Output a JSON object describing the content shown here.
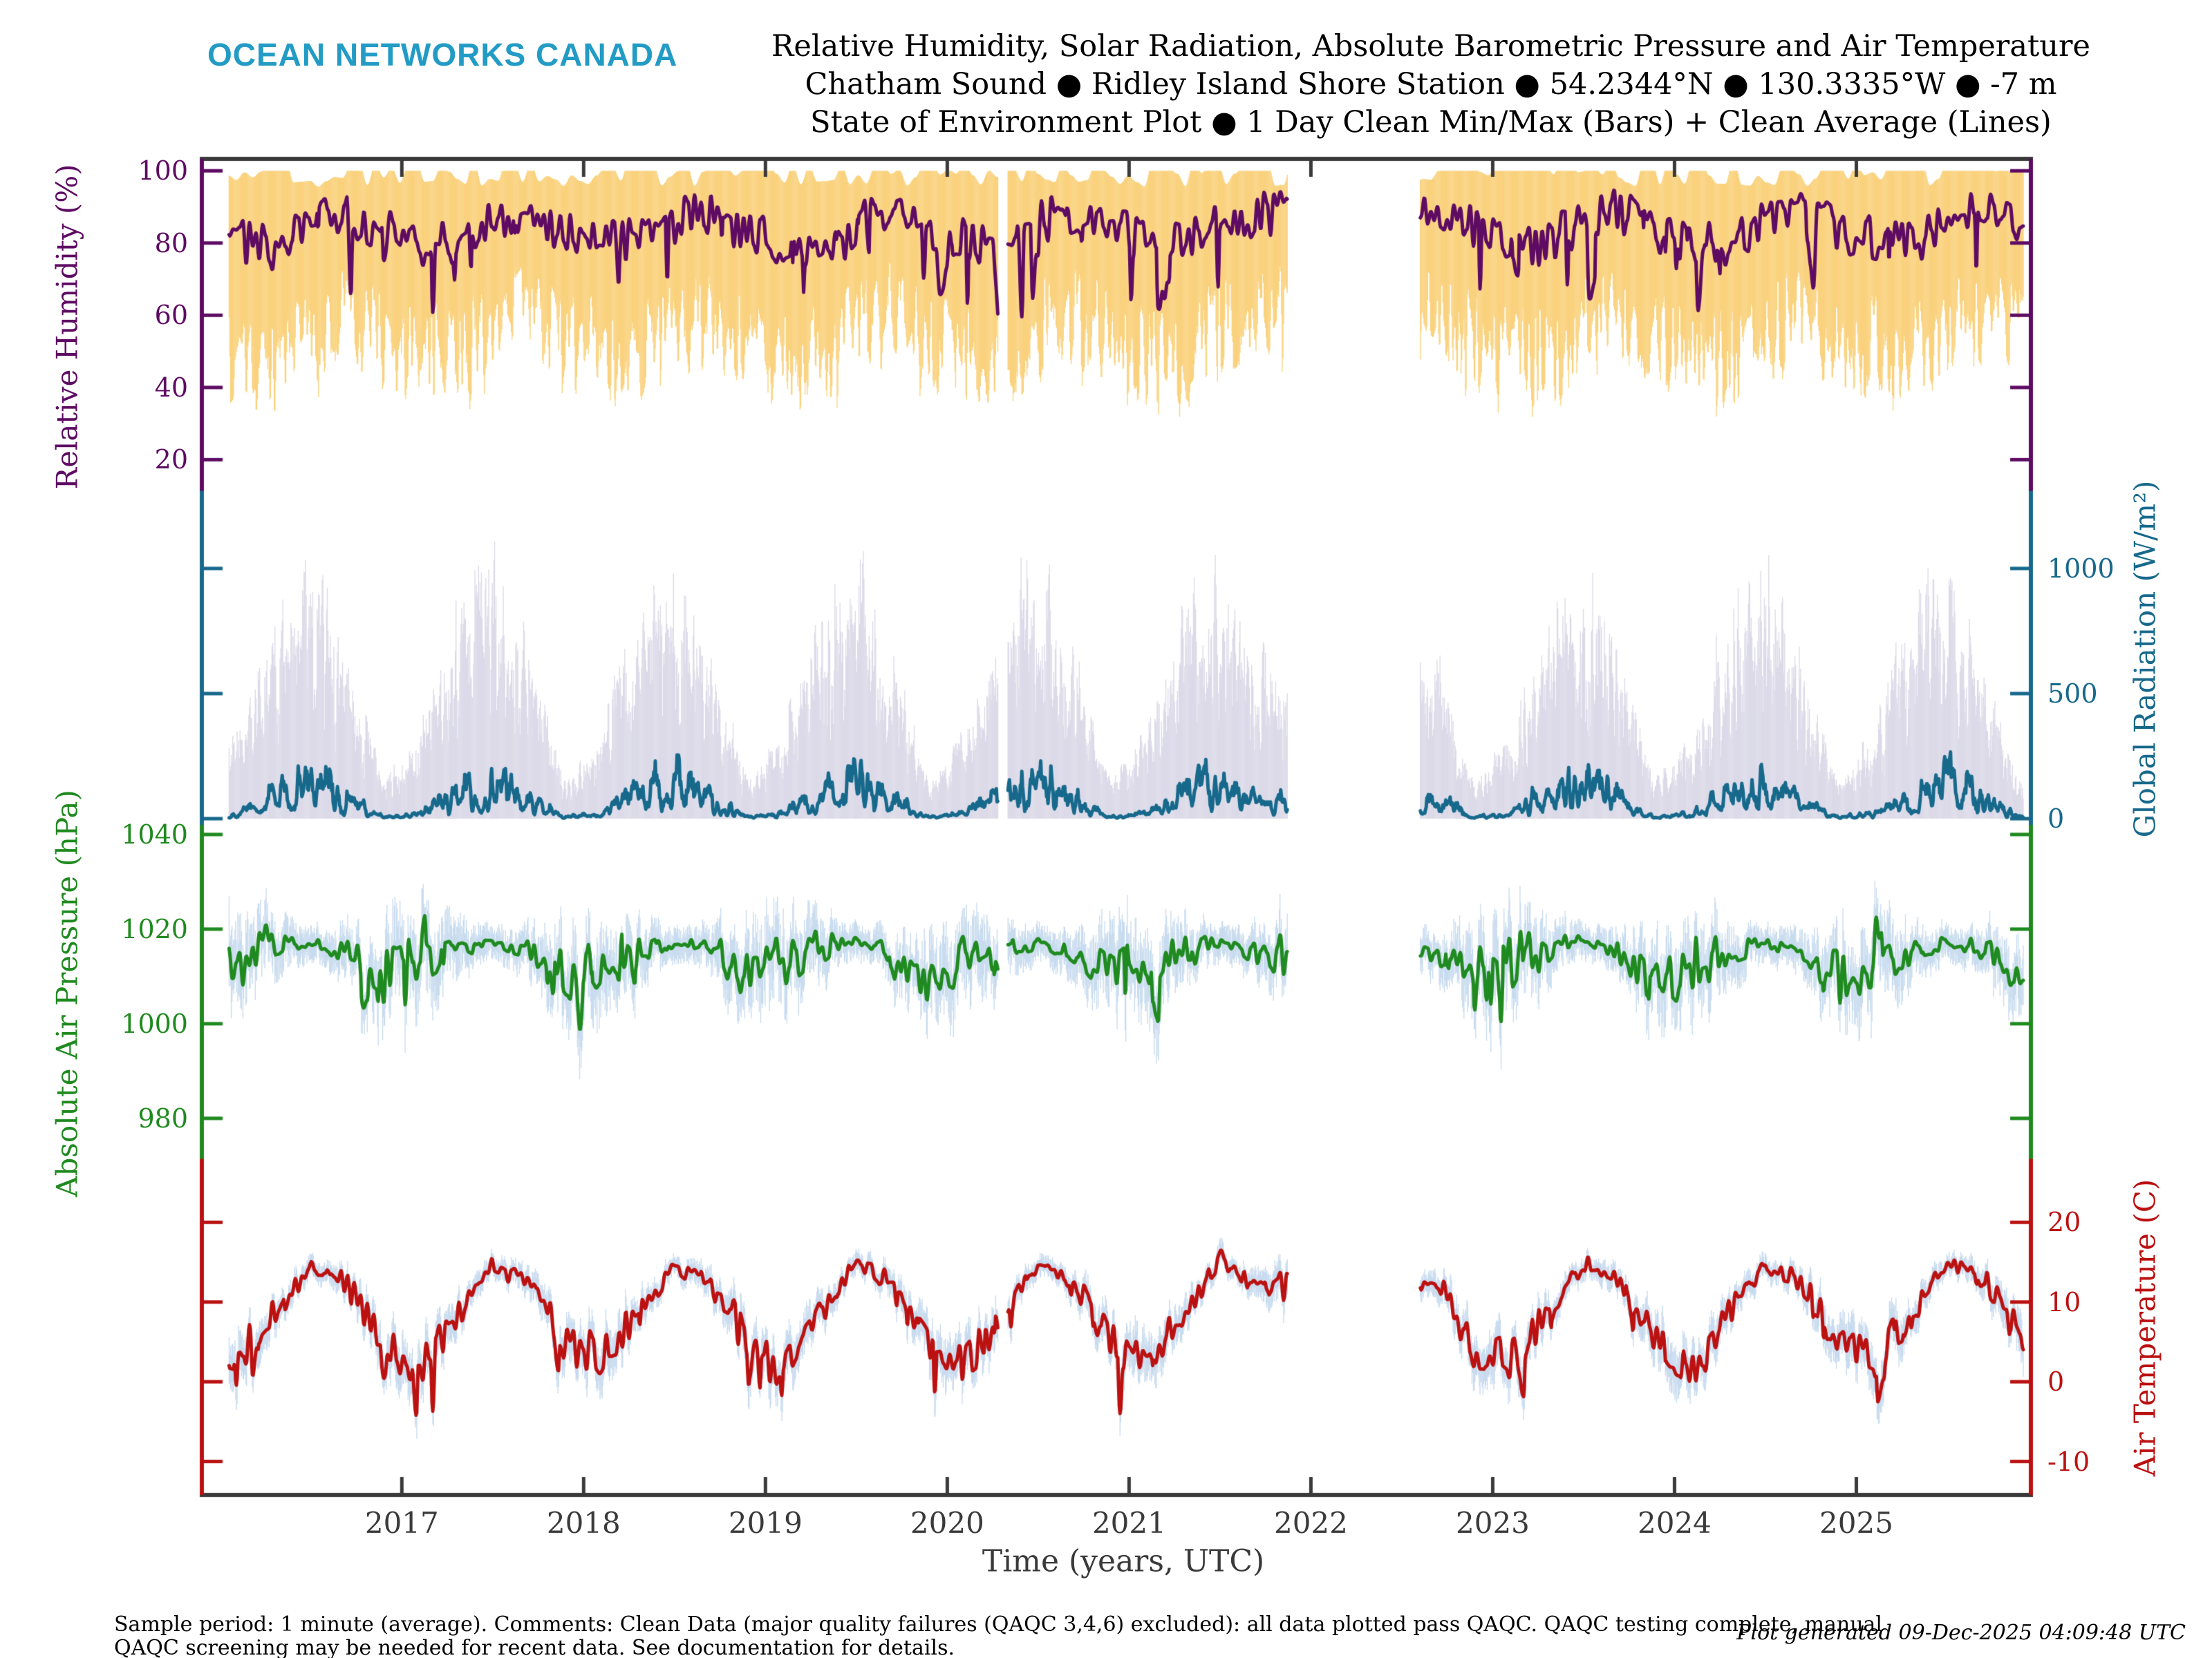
{
  "header": {
    "logo": "OCEAN NETWORKS CANADA",
    "title_lines": [
      "Relative Humidity, Solar Radiation, Absolute Barometric Pressure and Air Temperature",
      "Chatham Sound ● Ridley Island Shore Station ● 54.2344°N ● 130.3335°W ● -7 m",
      "State of Environment Plot ● 1 Day Clean Min/Max (Bars) + Clean Average (Lines)"
    ]
  },
  "footer": {
    "line1": "Sample period: 1 minute (average). Comments: Clean Data (major quality failures (QAQC 3,4,6) excluded): all data plotted pass QAQC. QAQC testing complete, manual",
    "line2": "QAQC screening may be needed for recent data. See documentation for details.",
    "generated": "Plot generated 09-Dec-2025 04:09:48 UTC"
  },
  "colors": {
    "frame": "#3a3a3a",
    "logo": "#229bc5",
    "title": "#000000"
  },
  "chart_data": {
    "type": "line",
    "title": "Relative Humidity, Solar Radiation, Absolute Barometric Pressure and Air Temperature",
    "xlabel": "Time (years, UTC)",
    "x_ticks": [
      2017,
      2018,
      2019,
      2020,
      2021,
      2022,
      2023,
      2024,
      2025
    ],
    "xlim": [
      2015.9,
      2025.96
    ],
    "data_start": 2016.05,
    "data_end": 2025.92,
    "gaps": [
      [
        2020.28,
        2020.33
      ],
      [
        2021.87,
        2022.6
      ]
    ],
    "x_anchors": [
      2016.1,
      2016.3,
      2016.5,
      2016.7,
      2016.9,
      2017.1,
      2017.3,
      2017.5,
      2017.7,
      2017.9,
      2018.1,
      2018.3,
      2018.5,
      2018.7,
      2018.9,
      2019.1,
      2019.3,
      2019.5,
      2019.7,
      2019.9,
      2020.1,
      2020.3,
      2020.5,
      2020.7,
      2020.9,
      2021.1,
      2021.3,
      2021.5,
      2021.7,
      2022.7,
      2022.9,
      2023.1,
      2023.3,
      2023.5,
      2023.7,
      2023.9,
      2024.1,
      2024.3,
      2024.5,
      2024.7,
      2024.9,
      2025.1,
      2025.3,
      2025.5,
      2025.7,
      2025.9
    ],
    "subplots": [
      {
        "id": "humidity",
        "ylabel": "Relative Humidity (%)",
        "label_side": "left",
        "ylim": [
          10.8,
          103.3
        ],
        "yticks": [
          100,
          80,
          60,
          40,
          20
        ],
        "line_color": "#5e0b63",
        "bar_color": "#fad27e",
        "avg": [
          80,
          79,
          85,
          88,
          83,
          80,
          79,
          85,
          88,
          83,
          81,
          80,
          86,
          88,
          84,
          79,
          80,
          85,
          89,
          83,
          80,
          79,
          86,
          88,
          84,
          80,
          80,
          86,
          88,
          88,
          84,
          80,
          80,
          86,
          89,
          83,
          79,
          80,
          85,
          88,
          84,
          81,
          80,
          86,
          89,
          84
        ],
        "min": [
          50,
          47,
          55,
          60,
          52,
          50,
          48,
          55,
          60,
          52,
          51,
          48,
          56,
          60,
          53,
          48,
          48,
          55,
          61,
          52,
          50,
          47,
          56,
          60,
          53,
          50,
          48,
          56,
          60,
          60,
          53,
          49,
          48,
          56,
          61,
          52,
          48,
          48,
          55,
          60,
          53,
          51,
          48,
          56,
          61,
          53
        ],
        "max": 100
      },
      {
        "id": "radiation",
        "ylabel": "Global Radiation (W/m²)",
        "label_side": "right",
        "ylim": [
          -33,
          1302
        ],
        "yticks": [
          1000,
          500,
          0
        ],
        "line_color": "#17698c",
        "bar_color": "#dcdae8",
        "avg": [
          30,
          150,
          235,
          110,
          12,
          30,
          150,
          240,
          110,
          12,
          32,
          155,
          240,
          115,
          13,
          30,
          150,
          235,
          110,
          12,
          30,
          148,
          238,
          112,
          12,
          30,
          150,
          245,
          108,
          110,
          12,
          30,
          150,
          238,
          112,
          12,
          31,
          152,
          240,
          110,
          12,
          30,
          150,
          242,
          112,
          13
        ],
        "min": 0,
        "max": [
          380,
          850,
          1060,
          680,
          160,
          380,
          860,
          1070,
          680,
          160,
          390,
          870,
          1080,
          690,
          165,
          380,
          850,
          1060,
          680,
          160,
          380,
          855,
          1070,
          685,
          160,
          385,
          860,
          1090,
          675,
          680,
          160,
          380,
          850,
          1065,
          685,
          160,
          385,
          855,
          1075,
          680,
          160,
          380,
          850,
          1080,
          690,
          165
        ]
      },
      {
        "id": "pressure",
        "ylabel": "Absolute Air Pressure (hPa)",
        "label_side": "left",
        "ylim": [
          971,
          1041.6
        ],
        "yticks": [
          1040,
          1020,
          1000,
          980
        ],
        "line_color": "#1f8a1f",
        "bar_color": "#c9dcef",
        "avg": [
          1013,
          1016,
          1017,
          1015,
          1010,
          1012,
          1016,
          1017,
          1015,
          1011,
          1013,
          1015,
          1017,
          1016,
          1010,
          1014,
          1016,
          1018,
          1015,
          1009,
          1013,
          1015,
          1017,
          1015,
          1010,
          1012,
          1016,
          1017,
          1015,
          1015,
          1010,
          1013,
          1016,
          1018,
          1015,
          1009,
          1012,
          1015,
          1017,
          1015,
          1010,
          1013,
          1016,
          1017,
          1016,
          1010
        ],
        "min": [
          1006,
          1012,
          1014,
          1011,
          1003,
          1005,
          1012,
          1014,
          1011,
          1004,
          1006,
          1011,
          1014,
          1012,
          1003,
          1007,
          1012,
          1015,
          1011,
          1002,
          1006,
          1011,
          1014,
          1011,
          1003,
          1005,
          1012,
          1014,
          1011,
          1011,
          1003,
          1006,
          1012,
          1015,
          1011,
          1002,
          1005,
          1011,
          1014,
          1011,
          1003,
          1006,
          1012,
          1014,
          1012,
          1003
        ],
        "max": [
          1020,
          1020,
          1020,
          1019,
          1017,
          1019,
          1020,
          1020,
          1019,
          1018,
          1020,
          1019,
          1020,
          1020,
          1017,
          1021,
          1020,
          1021,
          1019,
          1016,
          1020,
          1019,
          1020,
          1019,
          1017,
          1019,
          1020,
          1020,
          1019,
          1019,
          1017,
          1020,
          1020,
          1021,
          1019,
          1016,
          1019,
          1019,
          1020,
          1019,
          1017,
          1020,
          1020,
          1020,
          1020,
          1017
        ]
      },
      {
        "id": "temperature",
        "ylabel": "Air Temperature (C)",
        "label_side": "right",
        "ylim": [
          -14.2,
          27.7
        ],
        "yticks": [
          20,
          10,
          0,
          -10
        ],
        "line_color": "#bb1111",
        "bar_color": "#c8dbef",
        "avg": [
          3.5,
          8.5,
          14.5,
          12.5,
          5,
          1.5,
          8,
          14.5,
          12.5,
          5,
          3.5,
          8.5,
          14.5,
          12.5,
          5.5,
          1,
          8.5,
          15,
          12.5,
          5,
          2.5,
          8,
          14.5,
          12.5,
          5,
          3,
          8.5,
          15.5,
          12.5,
          12.5,
          4,
          2.5,
          8.5,
          15,
          13,
          5,
          1,
          8.5,
          14.5,
          12.5,
          5,
          3,
          8.5,
          15,
          13,
          5.5
        ],
        "min": [
          0.5,
          5.5,
          11.5,
          9.5,
          1.5,
          -2.5,
          5,
          11.5,
          9.5,
          1.5,
          0.5,
          5.5,
          11.5,
          9.5,
          2,
          -3.5,
          5.5,
          12,
          9.5,
          1.5,
          -1,
          5,
          11.5,
          9.5,
          1.5,
          0,
          5.5,
          12.5,
          9.5,
          9.5,
          0.5,
          -2,
          5.5,
          12,
          10,
          1.5,
          -3.5,
          5.5,
          11.5,
          9.5,
          1.5,
          -0.5,
          5.5,
          12,
          10,
          2
        ],
        "max": [
          6.5,
          11.5,
          17.5,
          15.5,
          8,
          4.5,
          11,
          17.5,
          15.5,
          8,
          6.5,
          11.5,
          17.5,
          15.5,
          8.5,
          4,
          11.5,
          18,
          15.5,
          8,
          5.5,
          11,
          17.5,
          15.5,
          8,
          6,
          11.5,
          18.5,
          15.5,
          15.5,
          7,
          5.5,
          11.5,
          18,
          16,
          8,
          4,
          11.5,
          17.5,
          15.5,
          8,
          6,
          11.5,
          18,
          16,
          8.5
        ]
      }
    ]
  }
}
